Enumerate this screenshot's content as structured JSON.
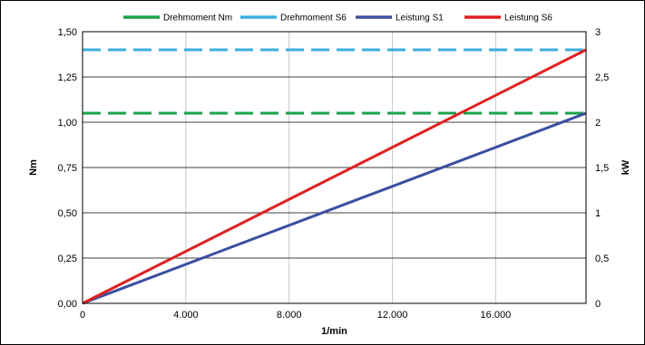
{
  "chart_data": {
    "type": "line",
    "title": "",
    "xlabel": "1/min",
    "ylabel_left": "Nm",
    "ylabel_right": "kW",
    "xlim": [
      0,
      19500
    ],
    "ylim_left": [
      0,
      1.5
    ],
    "ylim_right": [
      0,
      3
    ],
    "grid": true,
    "legend_position": "top",
    "x_ticks": [
      {
        "value": 0,
        "label": "0"
      },
      {
        "value": 4000,
        "label": "4.000"
      },
      {
        "value": 8000,
        "label": "8.000"
      },
      {
        "value": 12000,
        "label": "12.000"
      },
      {
        "value": 16000,
        "label": "16.000"
      }
    ],
    "y_left_ticks": [
      {
        "value": 0,
        "label": "0,00"
      },
      {
        "value": 0.25,
        "label": "0,25"
      },
      {
        "value": 0.5,
        "label": "0,50"
      },
      {
        "value": 0.75,
        "label": "0,75"
      },
      {
        "value": 1.0,
        "label": "1,00"
      },
      {
        "value": 1.25,
        "label": "1,25"
      },
      {
        "value": 1.5,
        "label": "1,50"
      }
    ],
    "y_right_ticks": [
      {
        "value": 0,
        "label": "0"
      },
      {
        "value": 0.5,
        "label": "0,5"
      },
      {
        "value": 1,
        "label": "1"
      },
      {
        "value": 1.5,
        "label": "1,5"
      },
      {
        "value": 2,
        "label": "2"
      },
      {
        "value": 2.5,
        "label": "2,5"
      },
      {
        "value": 3,
        "label": "3"
      }
    ],
    "series": [
      {
        "name": "Drehmoment Nm",
        "axis": "left",
        "dashed": true,
        "color": "#1aa34a",
        "x": [
          0,
          19500
        ],
        "y": [
          1.05,
          1.05
        ]
      },
      {
        "name": "Drehmoment S6",
        "axis": "left",
        "dashed": true,
        "color": "#3aaee0",
        "x": [
          0,
          19500
        ],
        "y": [
          1.4,
          1.4
        ]
      },
      {
        "name": "Leistung S1",
        "axis": "right",
        "dashed": false,
        "color": "#3c4fa0",
        "x": [
          0,
          19500
        ],
        "y": [
          0,
          2.1
        ]
      },
      {
        "name": "Leistung S6",
        "axis": "right",
        "dashed": false,
        "color": "#e02020",
        "x": [
          0,
          19500
        ],
        "y": [
          0,
          2.8
        ]
      }
    ]
  }
}
